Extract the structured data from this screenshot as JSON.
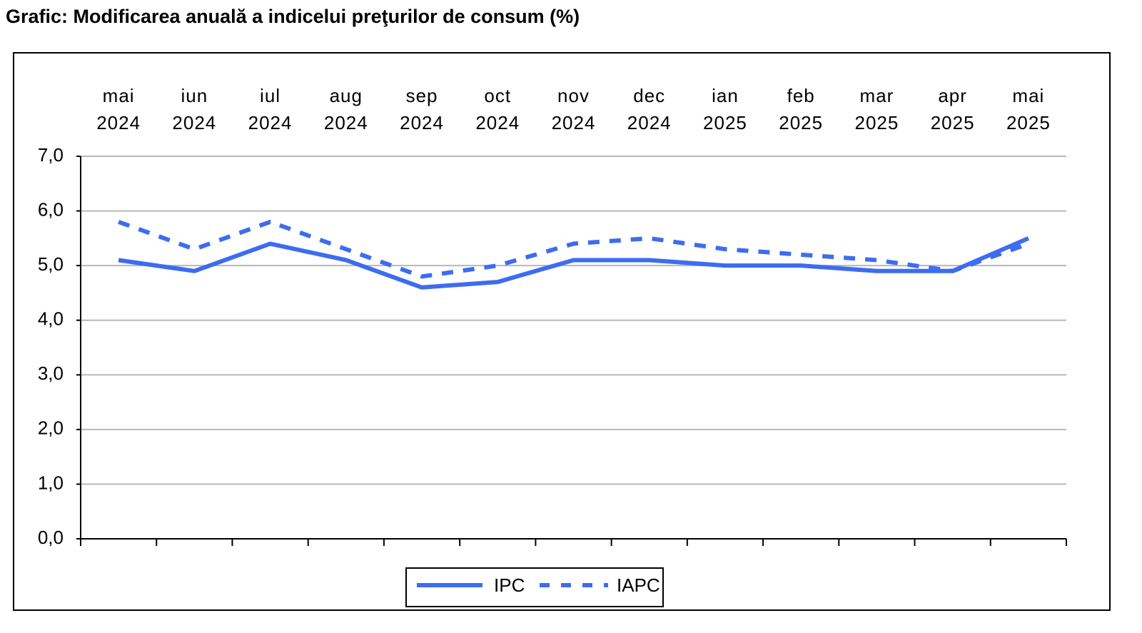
{
  "chart_data": {
    "type": "line",
    "title": "Grafic: Modificarea anuală a indicelui preţurilor de consum (%)",
    "categories": [
      "mai 2024",
      "iun 2024",
      "iul 2024",
      "aug 2024",
      "sep 2024",
      "oct 2024",
      "nov 2024",
      "dec 2024",
      "ian 2025",
      "feb 2025",
      "mar 2025",
      "apr 2025",
      "mai 2025"
    ],
    "series": [
      {
        "name": "IPC",
        "color": "#3d6cf0",
        "line_style": "solid",
        "values": [
          5.1,
          4.9,
          5.4,
          5.1,
          4.6,
          4.7,
          5.1,
          5.1,
          5.0,
          5.0,
          4.9,
          4.9,
          5.5
        ]
      },
      {
        "name": "IAPC",
        "color": "#3d6cf0",
        "line_style": "dashed",
        "values": [
          5.8,
          5.3,
          5.8,
          5.3,
          4.8,
          5.0,
          5.4,
          5.5,
          5.3,
          5.2,
          5.1,
          4.9,
          5.4
        ]
      }
    ],
    "ylim": [
      0,
      7
    ],
    "yticks": [
      {
        "value": 0,
        "label": "0,0"
      },
      {
        "value": 1,
        "label": "1,0"
      },
      {
        "value": 2,
        "label": "2,0"
      },
      {
        "value": 3,
        "label": "3,0"
      },
      {
        "value": 4,
        "label": "4,0"
      },
      {
        "value": 5,
        "label": "5,0"
      },
      {
        "value": 6,
        "label": "6,0"
      },
      {
        "value": 7,
        "label": "7,0"
      }
    ],
    "grid": true,
    "legend": "bottom"
  }
}
